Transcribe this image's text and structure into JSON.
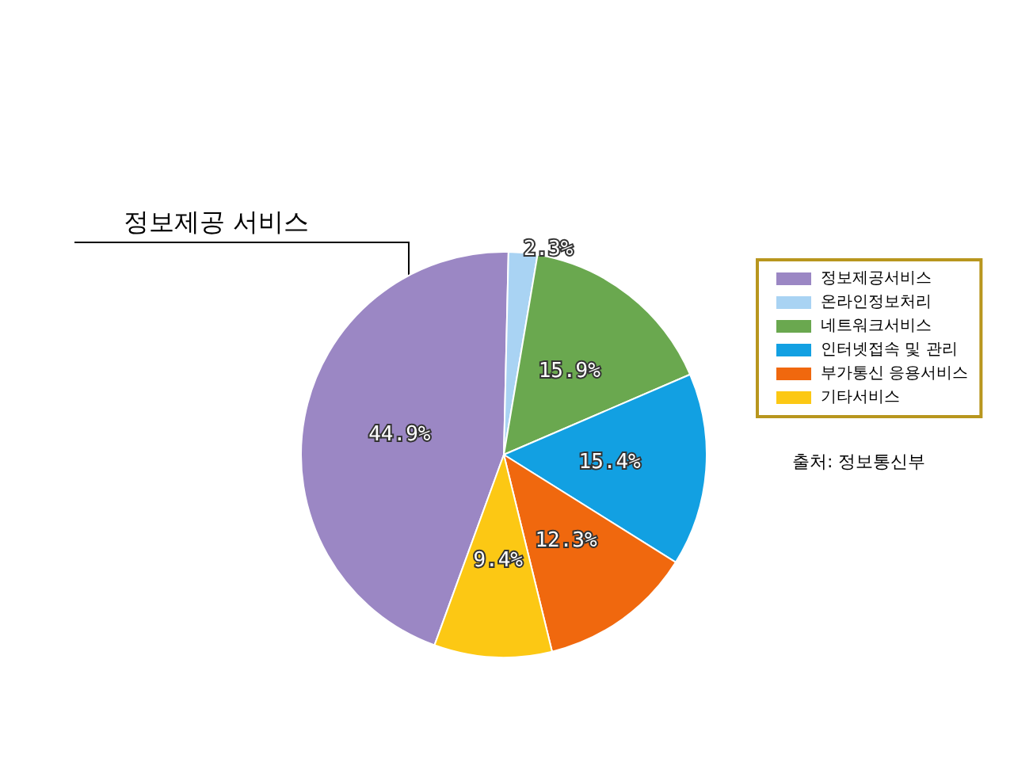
{
  "chart_data": {
    "type": "pie",
    "categories": [
      "정보제공서비스",
      "온라인정보처리",
      "네트워크서비스",
      "인터넷접속 및 관리",
      "부가통신 응용서비스",
      "기타서비스"
    ],
    "values": [
      44.9,
      2.3,
      15.9,
      15.4,
      12.3,
      9.4
    ],
    "colors": [
      "#9b87c4",
      "#a9d3f3",
      "#6aa84f",
      "#12a0e2",
      "#f0680e",
      "#fcc814"
    ],
    "value_labels": [
      "44.9%",
      "2.3%",
      "15.9%",
      "15.4%",
      "12.3%",
      "9.4%"
    ],
    "legend": "right",
    "annotations": [
      "정보제공 서비스",
      "출처: 정보통신부"
    ]
  }
}
